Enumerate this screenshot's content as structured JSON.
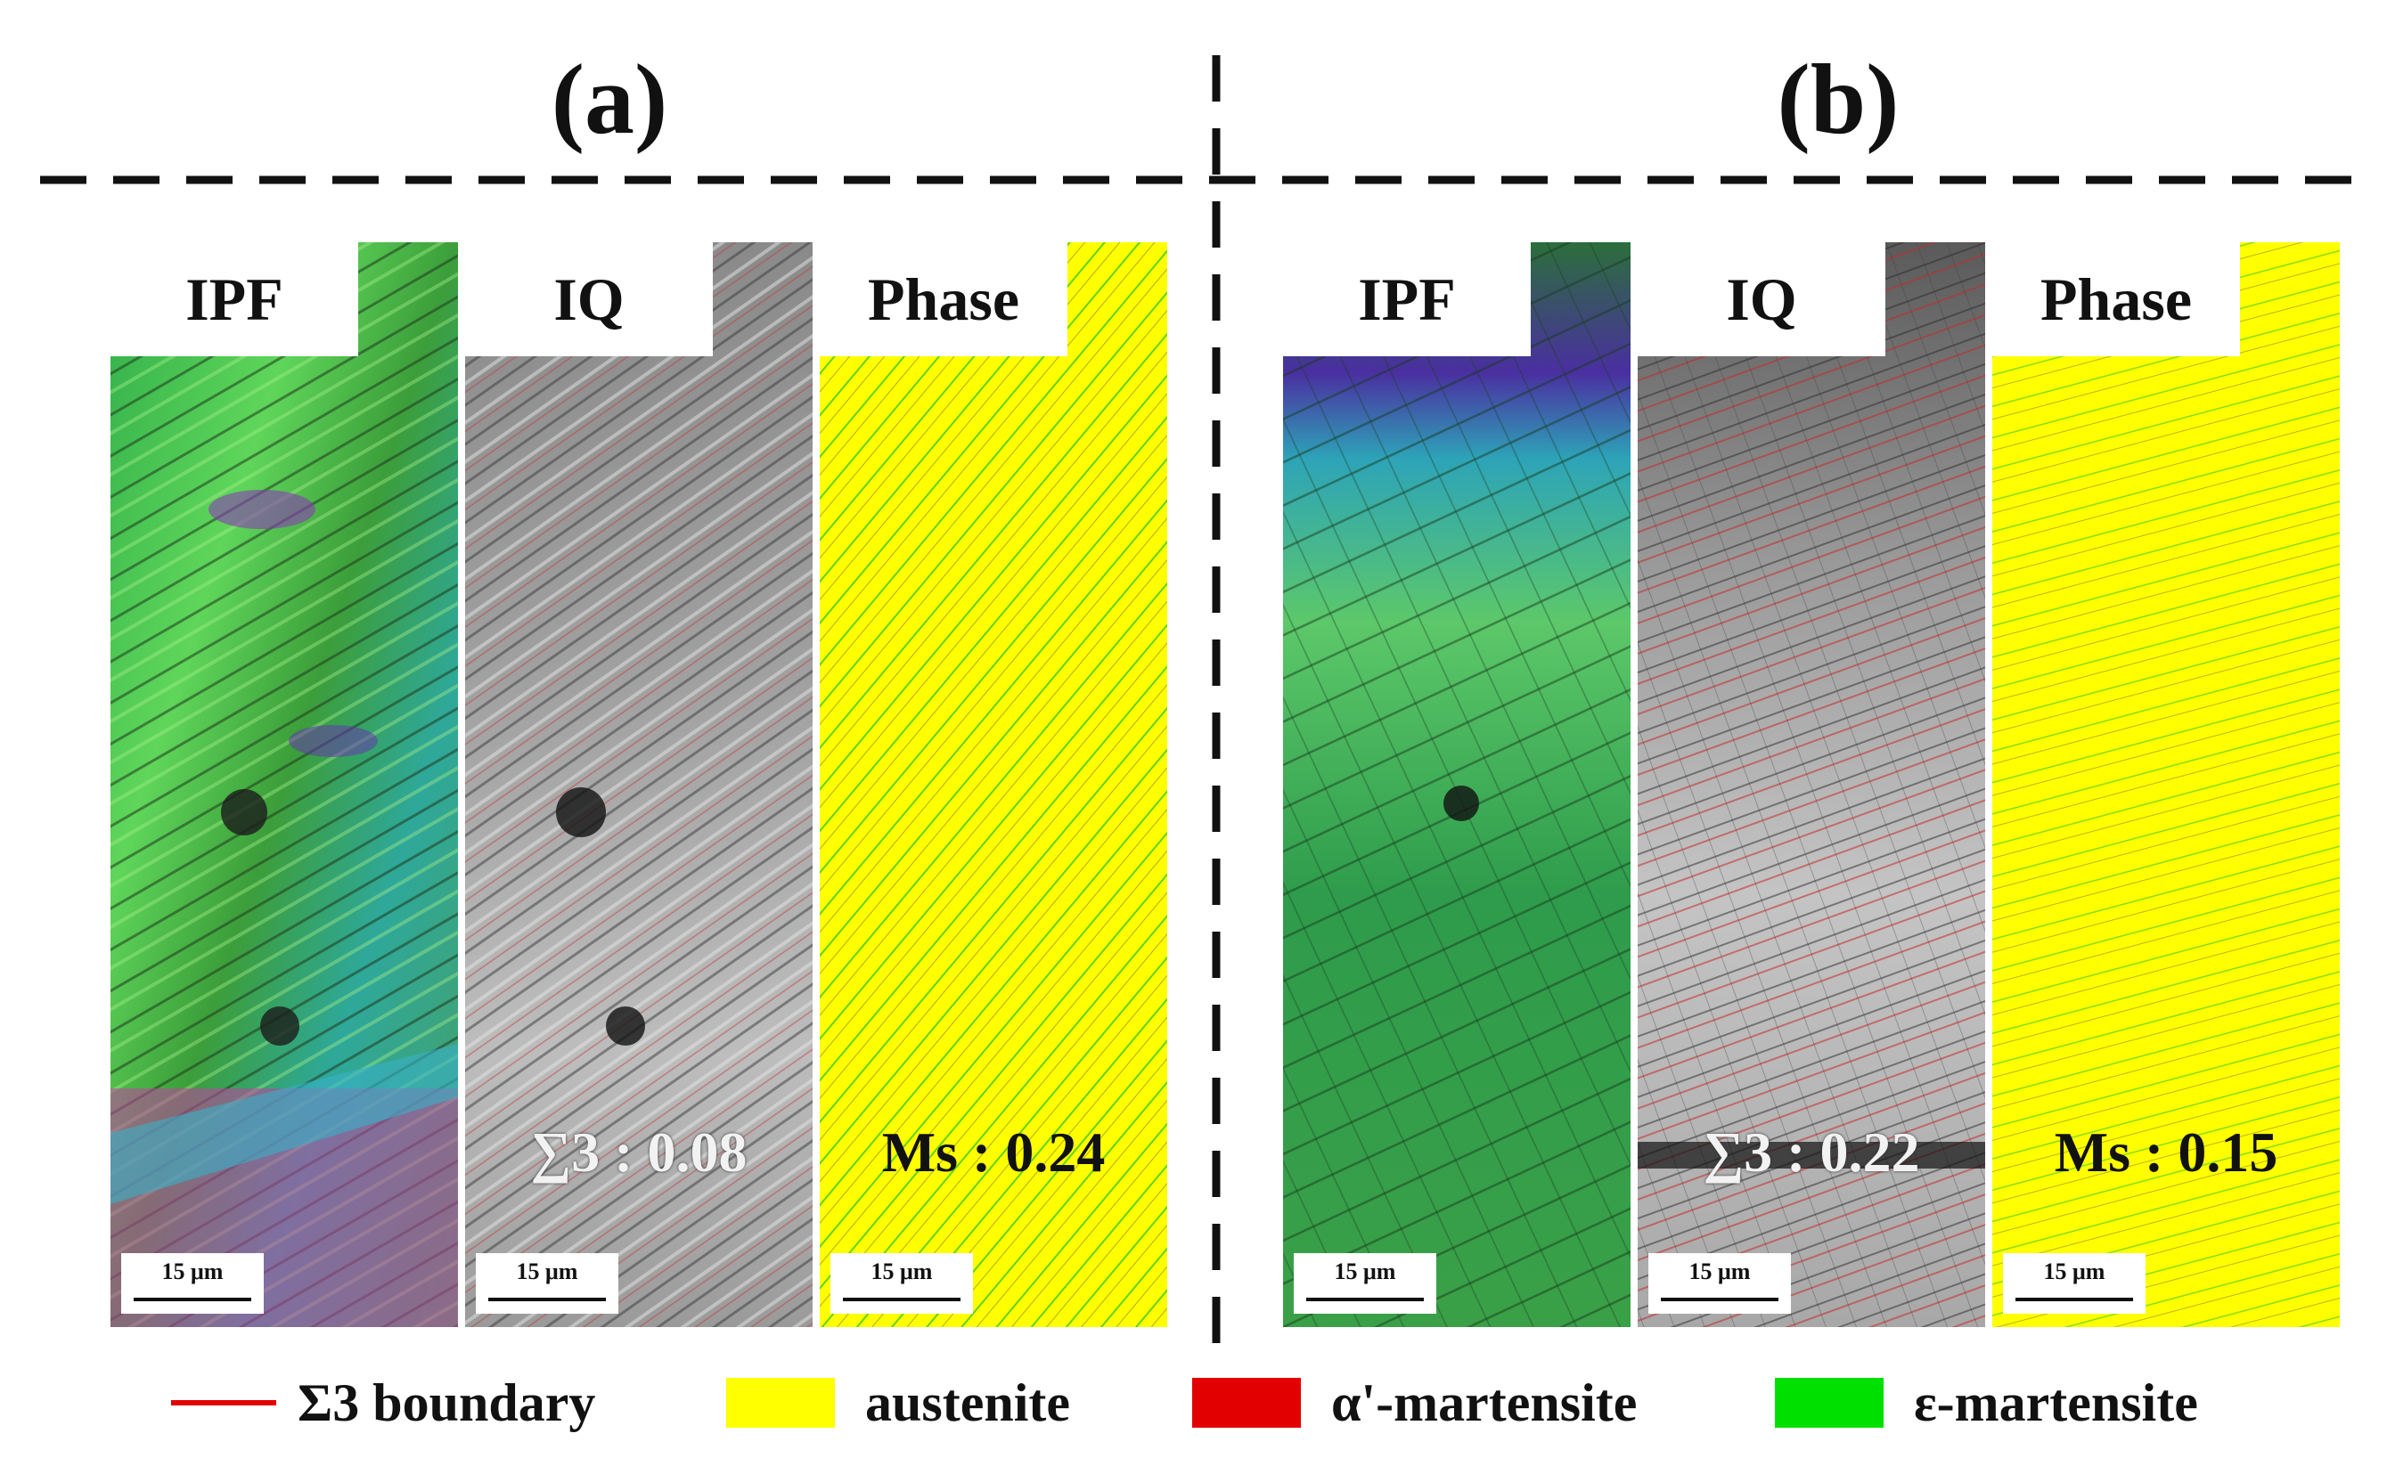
{
  "panels": [
    {
      "title": "(a)",
      "maps": [
        {
          "label": "IPF",
          "scale": "15 μm",
          "fraction": ""
        },
        {
          "label": "IQ",
          "scale": "15 μm",
          "fraction": "∑3 : 0.08"
        },
        {
          "label": "Phase",
          "scale": "15 μm",
          "fraction": "Ms : 0.24"
        }
      ]
    },
    {
      "title": "(b)",
      "maps": [
        {
          "label": "IPF",
          "scale": "15 μm",
          "fraction": ""
        },
        {
          "label": "IQ",
          "scale": "15 μm",
          "fraction": "∑3 : 0.22"
        },
        {
          "label": "Phase",
          "scale": "15 μm",
          "fraction": "Ms : 0.15"
        }
      ]
    }
  ],
  "legend": [
    {
      "label": "Σ3 boundary",
      "kind": "line",
      "color": "#e30000"
    },
    {
      "label": "austenite",
      "kind": "swatch",
      "color": "#ffff00"
    },
    {
      "label": "α'-martensite",
      "kind": "swatch",
      "color": "#e30000"
    },
    {
      "label": "ε-martensite",
      "kind": "swatch",
      "color": "#00e000"
    }
  ]
}
